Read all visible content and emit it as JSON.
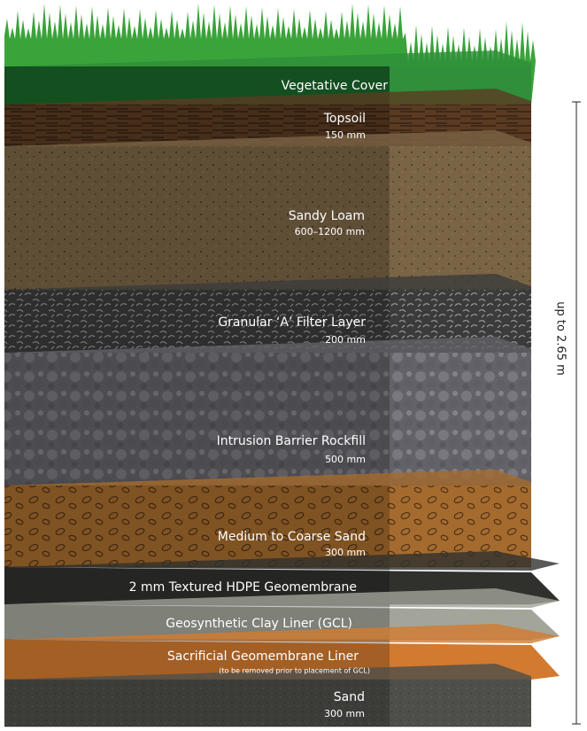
{
  "layers": [
    {
      "name": "Vegetative Cover"
    },
    {
      "name": "Topsoil",
      "thickness": "150 mm"
    },
    {
      "name": "Sandy Loam",
      "thickness": "600–1200 mm"
    },
    {
      "name": "Granular ‘A’ Filter Layer",
      "thickness": "200 mm"
    },
    {
      "name": "Intrusion Barrier Rockfill",
      "thickness": "500 mm"
    },
    {
      "name": "Medium to Coarse Sand",
      "thickness": "300 mm"
    },
    {
      "name": "2 mm Textured HDPE Geomembrane"
    },
    {
      "name": "Geosynthetic Clay Liner (GCL)"
    },
    {
      "name": "Sacrificial Geomembrane Liner",
      "note": "(to be removed prior to placement of GCL)"
    },
    {
      "name": "Sand",
      "thickness": "300 mm"
    }
  ],
  "dimension": "up to 2.65 m"
}
